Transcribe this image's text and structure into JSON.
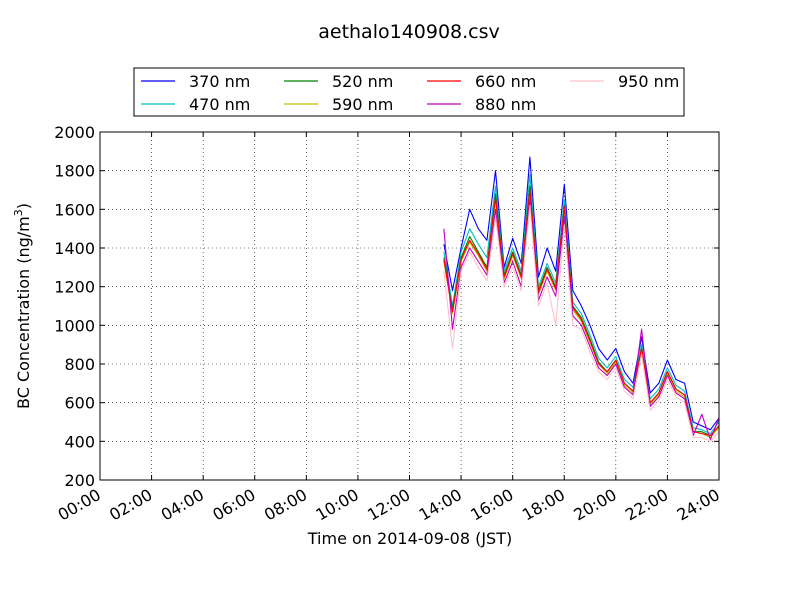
{
  "chart_data": {
    "type": "line",
    "title": "aethalo140908.csv",
    "xlabel": "Time on 2014-09-08 (JST)",
    "ylabel": "BC Concentration (ng/m",
    "ylabel_sup": "3",
    "ylabel_end": ")",
    "xlim": [
      "00:00",
      "24:00"
    ],
    "ylim": [
      200,
      2000
    ],
    "grid": true,
    "legend_position": "top",
    "x_ticks": [
      "00:00",
      "02:00",
      "04:00",
      "06:00",
      "08:00",
      "10:00",
      "12:00",
      "14:00",
      "16:00",
      "18:00",
      "20:00",
      "22:00",
      "24:00"
    ],
    "y_ticks": [
      "200",
      "400",
      "600",
      "800",
      "1000",
      "1200",
      "1400",
      "1600",
      "1800",
      "2000"
    ],
    "x": [
      "13:20",
      "13:40",
      "14:00",
      "14:20",
      "14:40",
      "15:00",
      "15:20",
      "15:40",
      "16:00",
      "16:20",
      "16:40",
      "17:00",
      "17:20",
      "17:40",
      "18:00",
      "18:20",
      "18:40",
      "19:00",
      "19:20",
      "19:40",
      "20:00",
      "20:20",
      "20:40",
      "21:00",
      "21:20",
      "21:40",
      "22:00",
      "22:20",
      "22:40",
      "23:00",
      "23:20",
      "23:40",
      "24:00"
    ],
    "series": [
      {
        "name": "370 nm",
        "color": "#0000ff",
        "values": [
          1420,
          1180,
          1400,
          1600,
          1500,
          1440,
          1800,
          1300,
          1450,
          1320,
          1870,
          1250,
          1400,
          1280,
          1730,
          1180,
          1100,
          1000,
          880,
          820,
          880,
          760,
          700,
          940,
          650,
          700,
          820,
          720,
          700,
          500,
          480,
          460,
          520
        ]
      },
      {
        "name": "470 nm",
        "color": "#00bfbf",
        "values": [
          1380,
          1100,
          1380,
          1500,
          1420,
          1350,
          1720,
          1280,
          1400,
          1280,
          1780,
          1200,
          1320,
          1220,
          1650,
          1120,
          1060,
          950,
          830,
          780,
          840,
          720,
          680,
          900,
          620,
          670,
          780,
          690,
          660,
          470,
          460,
          440,
          500
        ]
      },
      {
        "name": "520 nm",
        "color": "#008000",
        "values": [
          1350,
          1080,
          1350,
          1460,
          1380,
          1300,
          1680,
          1260,
          1380,
          1260,
          1720,
          1180,
          1300,
          1200,
          1620,
          1100,
          1040,
          930,
          810,
          760,
          820,
          700,
          660,
          880,
          600,
          650,
          760,
          670,
          640,
          450,
          450,
          430,
          480
        ]
      },
      {
        "name": "590 nm",
        "color": "#bfbf00",
        "values": [
          1330,
          1060,
          1330,
          1430,
          1360,
          1280,
          1650,
          1240,
          1360,
          1240,
          1690,
          1160,
          1280,
          1180,
          1600,
          1080,
          1020,
          910,
          800,
          750,
          810,
          690,
          650,
          870,
          590,
          640,
          750,
          660,
          630,
          450,
          440,
          420,
          470
        ]
      },
      {
        "name": "660 nm",
        "color": "#ff0000",
        "values": [
          1340,
          1070,
          1340,
          1440,
          1370,
          1290,
          1660,
          1250,
          1370,
          1250,
          1700,
          1170,
          1290,
          1190,
          1610,
          1090,
          1030,
          920,
          800,
          760,
          820,
          700,
          660,
          880,
          600,
          650,
          760,
          670,
          640,
          450,
          440,
          430,
          480
        ]
      },
      {
        "name": "880 nm",
        "color": "#bf00bf",
        "values": [
          1500,
          980,
          1300,
          1400,
          1330,
          1260,
          1600,
          1220,
          1330,
          1200,
          1650,
          1130,
          1250,
          1150,
          1560,
          1050,
          1000,
          890,
          780,
          740,
          800,
          680,
          640,
          980,
          580,
          630,
          740,
          650,
          620,
          430,
          540,
          410,
          520
        ]
      },
      {
        "name": "950 nm",
        "color": "#ffc0cb",
        "values": [
          1280,
          880,
          1280,
          1380,
          1300,
          1230,
          1560,
          1200,
          1300,
          1180,
          1620,
          1100,
          1220,
          1000,
          1520,
          1000,
          980,
          860,
          760,
          720,
          780,
          660,
          620,
          850,
          560,
          610,
          720,
          630,
          600,
          420,
          420,
          400,
          450
        ]
      }
    ]
  }
}
